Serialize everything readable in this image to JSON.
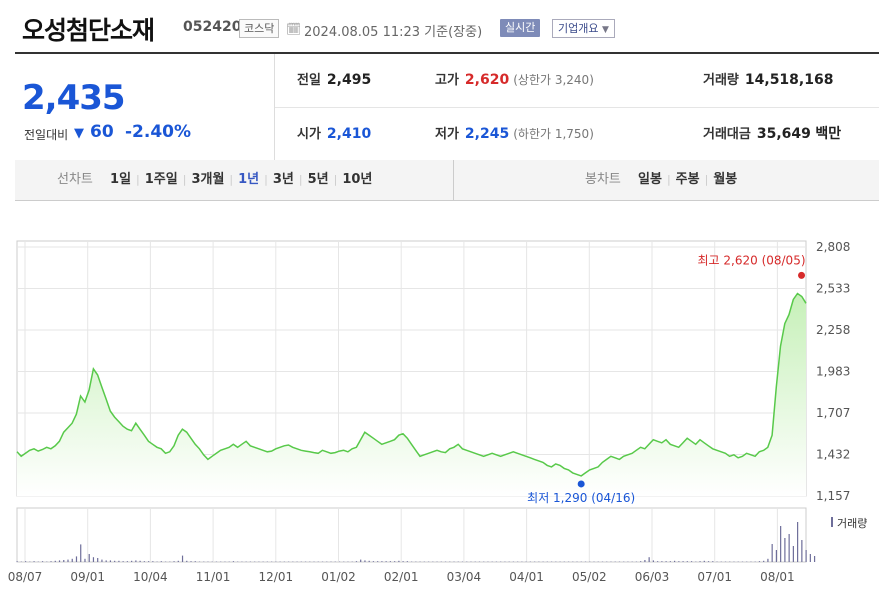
{
  "header": {
    "name": "오성첨단소재",
    "code": "052420",
    "market": "코스닥",
    "timestamp": "2024.08.05 11:23",
    "basis": "기준(장중)",
    "realtime_label": "실시간",
    "overview_label": "기업개요"
  },
  "summary": {
    "price": "2,435",
    "change_label": "전일대비",
    "change_value": "60",
    "change_pct": "-2.40%",
    "prev_label": "전일",
    "prev_value": "2,495",
    "high_label": "고가",
    "high_value": "2,620",
    "upper_limit": "(상한가 3,240)",
    "volume_label": "거래량",
    "volume_value": "14,518,168",
    "open_label": "시가",
    "open_value": "2,410",
    "low_label": "저가",
    "low_value": "2,245",
    "lower_limit": "(하한가 1,750)",
    "amount_label": "거래대금",
    "amount_value": "35,649",
    "amount_unit": "백만"
  },
  "tabs": {
    "line_label": "선차트",
    "line_periods": [
      "1일",
      "1주일",
      "3개월",
      "1년",
      "3년",
      "5년",
      "10년"
    ],
    "active_period": "1년",
    "candle_label": "봉차트",
    "candle_periods": [
      "일봉",
      "주봉",
      "월봉"
    ]
  },
  "colors": {
    "line": "#58c94a",
    "area_top": "#c6f0b8",
    "down": "#1a56d6",
    "up": "#d62a2a",
    "volume": "#6e6e9a",
    "grid": "#e6e6e6"
  },
  "chart_data": {
    "type": "area",
    "title": "",
    "ylim": [
      1157,
      2808
    ],
    "yticks": [
      "2,808",
      "2,533",
      "2,258",
      "1,983",
      "1,707",
      "1,432",
      "1,157"
    ],
    "x_tick_labels": [
      "08/07",
      "09/01",
      "10/04",
      "11/01",
      "12/01",
      "01/02",
      "02/01",
      "03/04",
      "04/01",
      "05/02",
      "06/03",
      "07/01",
      "08/01"
    ],
    "high_annotation": "최고 2,620 (08/05)",
    "low_annotation": "최저 1,290 (04/16)",
    "volume_label": "거래량",
    "series": [
      {
        "values": [
          1450,
          1420,
          1440,
          1460,
          1470,
          1455,
          1465,
          1480,
          1470,
          1490,
          1520,
          1580,
          1610,
          1640,
          1700,
          1820,
          1780,
          1860,
          2000,
          1960,
          1880,
          1800,
          1720,
          1680,
          1650,
          1620,
          1600,
          1590,
          1640,
          1600,
          1560,
          1520,
          1500,
          1480,
          1470,
          1440,
          1450,
          1490,
          1560,
          1600,
          1580,
          1540,
          1500,
          1470,
          1430,
          1400,
          1420,
          1440,
          1460,
          1470,
          1480,
          1500,
          1480,
          1500,
          1520,
          1490,
          1480,
          1470,
          1460,
          1450,
          1455,
          1470,
          1480,
          1490,
          1495,
          1480,
          1470,
          1460,
          1455,
          1450,
          1445,
          1440,
          1460,
          1450,
          1440,
          1445,
          1455,
          1460,
          1450,
          1470,
          1480,
          1530,
          1580,
          1560,
          1540,
          1520,
          1500,
          1510,
          1520,
          1530,
          1560,
          1570,
          1540,
          1500,
          1460,
          1420,
          1430,
          1440,
          1450,
          1460,
          1450,
          1445,
          1470,
          1480,
          1500,
          1470,
          1460,
          1450,
          1440,
          1430,
          1420,
          1430,
          1440,
          1430,
          1420,
          1430,
          1440,
          1450,
          1440,
          1430,
          1420,
          1410,
          1400,
          1390,
          1380,
          1360,
          1350,
          1370,
          1360,
          1340,
          1330,
          1310,
          1300,
          1290,
          1310,
          1330,
          1340,
          1350,
          1380,
          1400,
          1420,
          1410,
          1400,
          1420,
          1430,
          1440,
          1460,
          1480,
          1470,
          1500,
          1530,
          1520,
          1510,
          1530,
          1500,
          1490,
          1480,
          1510,
          1540,
          1520,
          1500,
          1530,
          1510,
          1490,
          1470,
          1460,
          1450,
          1440,
          1420,
          1430,
          1410,
          1420,
          1440,
          1430,
          1420,
          1450,
          1460,
          1480,
          1560,
          1880,
          2150,
          2300,
          2360,
          2460,
          2500,
          2480,
          2435
        ]
      }
    ],
    "volume": [
      2,
      1,
      2,
      1,
      2,
      1,
      2,
      1,
      2,
      3,
      4,
      5,
      6,
      8,
      14,
      44,
      8,
      20,
      12,
      10,
      6,
      4,
      4,
      3,
      3,
      2,
      2,
      3,
      4,
      3,
      2,
      2,
      2,
      1,
      2,
      1,
      1,
      2,
      3,
      16,
      3,
      2,
      2,
      1,
      1,
      1,
      1,
      1,
      1,
      1,
      1,
      2,
      1,
      1,
      1,
      1,
      1,
      1,
      1,
      1,
      1,
      1,
      1,
      1,
      1,
      1,
      1,
      1,
      1,
      1,
      1,
      1,
      1,
      1,
      1,
      1,
      1,
      1,
      1,
      1,
      2,
      6,
      4,
      3,
      2,
      2,
      2,
      2,
      2,
      2,
      3,
      2,
      2,
      1,
      1,
      1,
      1,
      1,
      1,
      1,
      1,
      1,
      1,
      1,
      1,
      1,
      1,
      1,
      1,
      1,
      1,
      1,
      1,
      1,
      1,
      1,
      1,
      1,
      1,
      1,
      1,
      1,
      1,
      1,
      1,
      1,
      1,
      1,
      1,
      1,
      1,
      1,
      1,
      1,
      1,
      1,
      1,
      1,
      1,
      1,
      1,
      1,
      1,
      1,
      1,
      1,
      1,
      2,
      5,
      12,
      4,
      2,
      2,
      2,
      2,
      3,
      2,
      2,
      2,
      2,
      1,
      2,
      3,
      2,
      2,
      1,
      1,
      1,
      1,
      1,
      1,
      1,
      1,
      1,
      1,
      2,
      3,
      8,
      45,
      30,
      90,
      60,
      70,
      40,
      100,
      55,
      30,
      20,
      15
    ]
  }
}
